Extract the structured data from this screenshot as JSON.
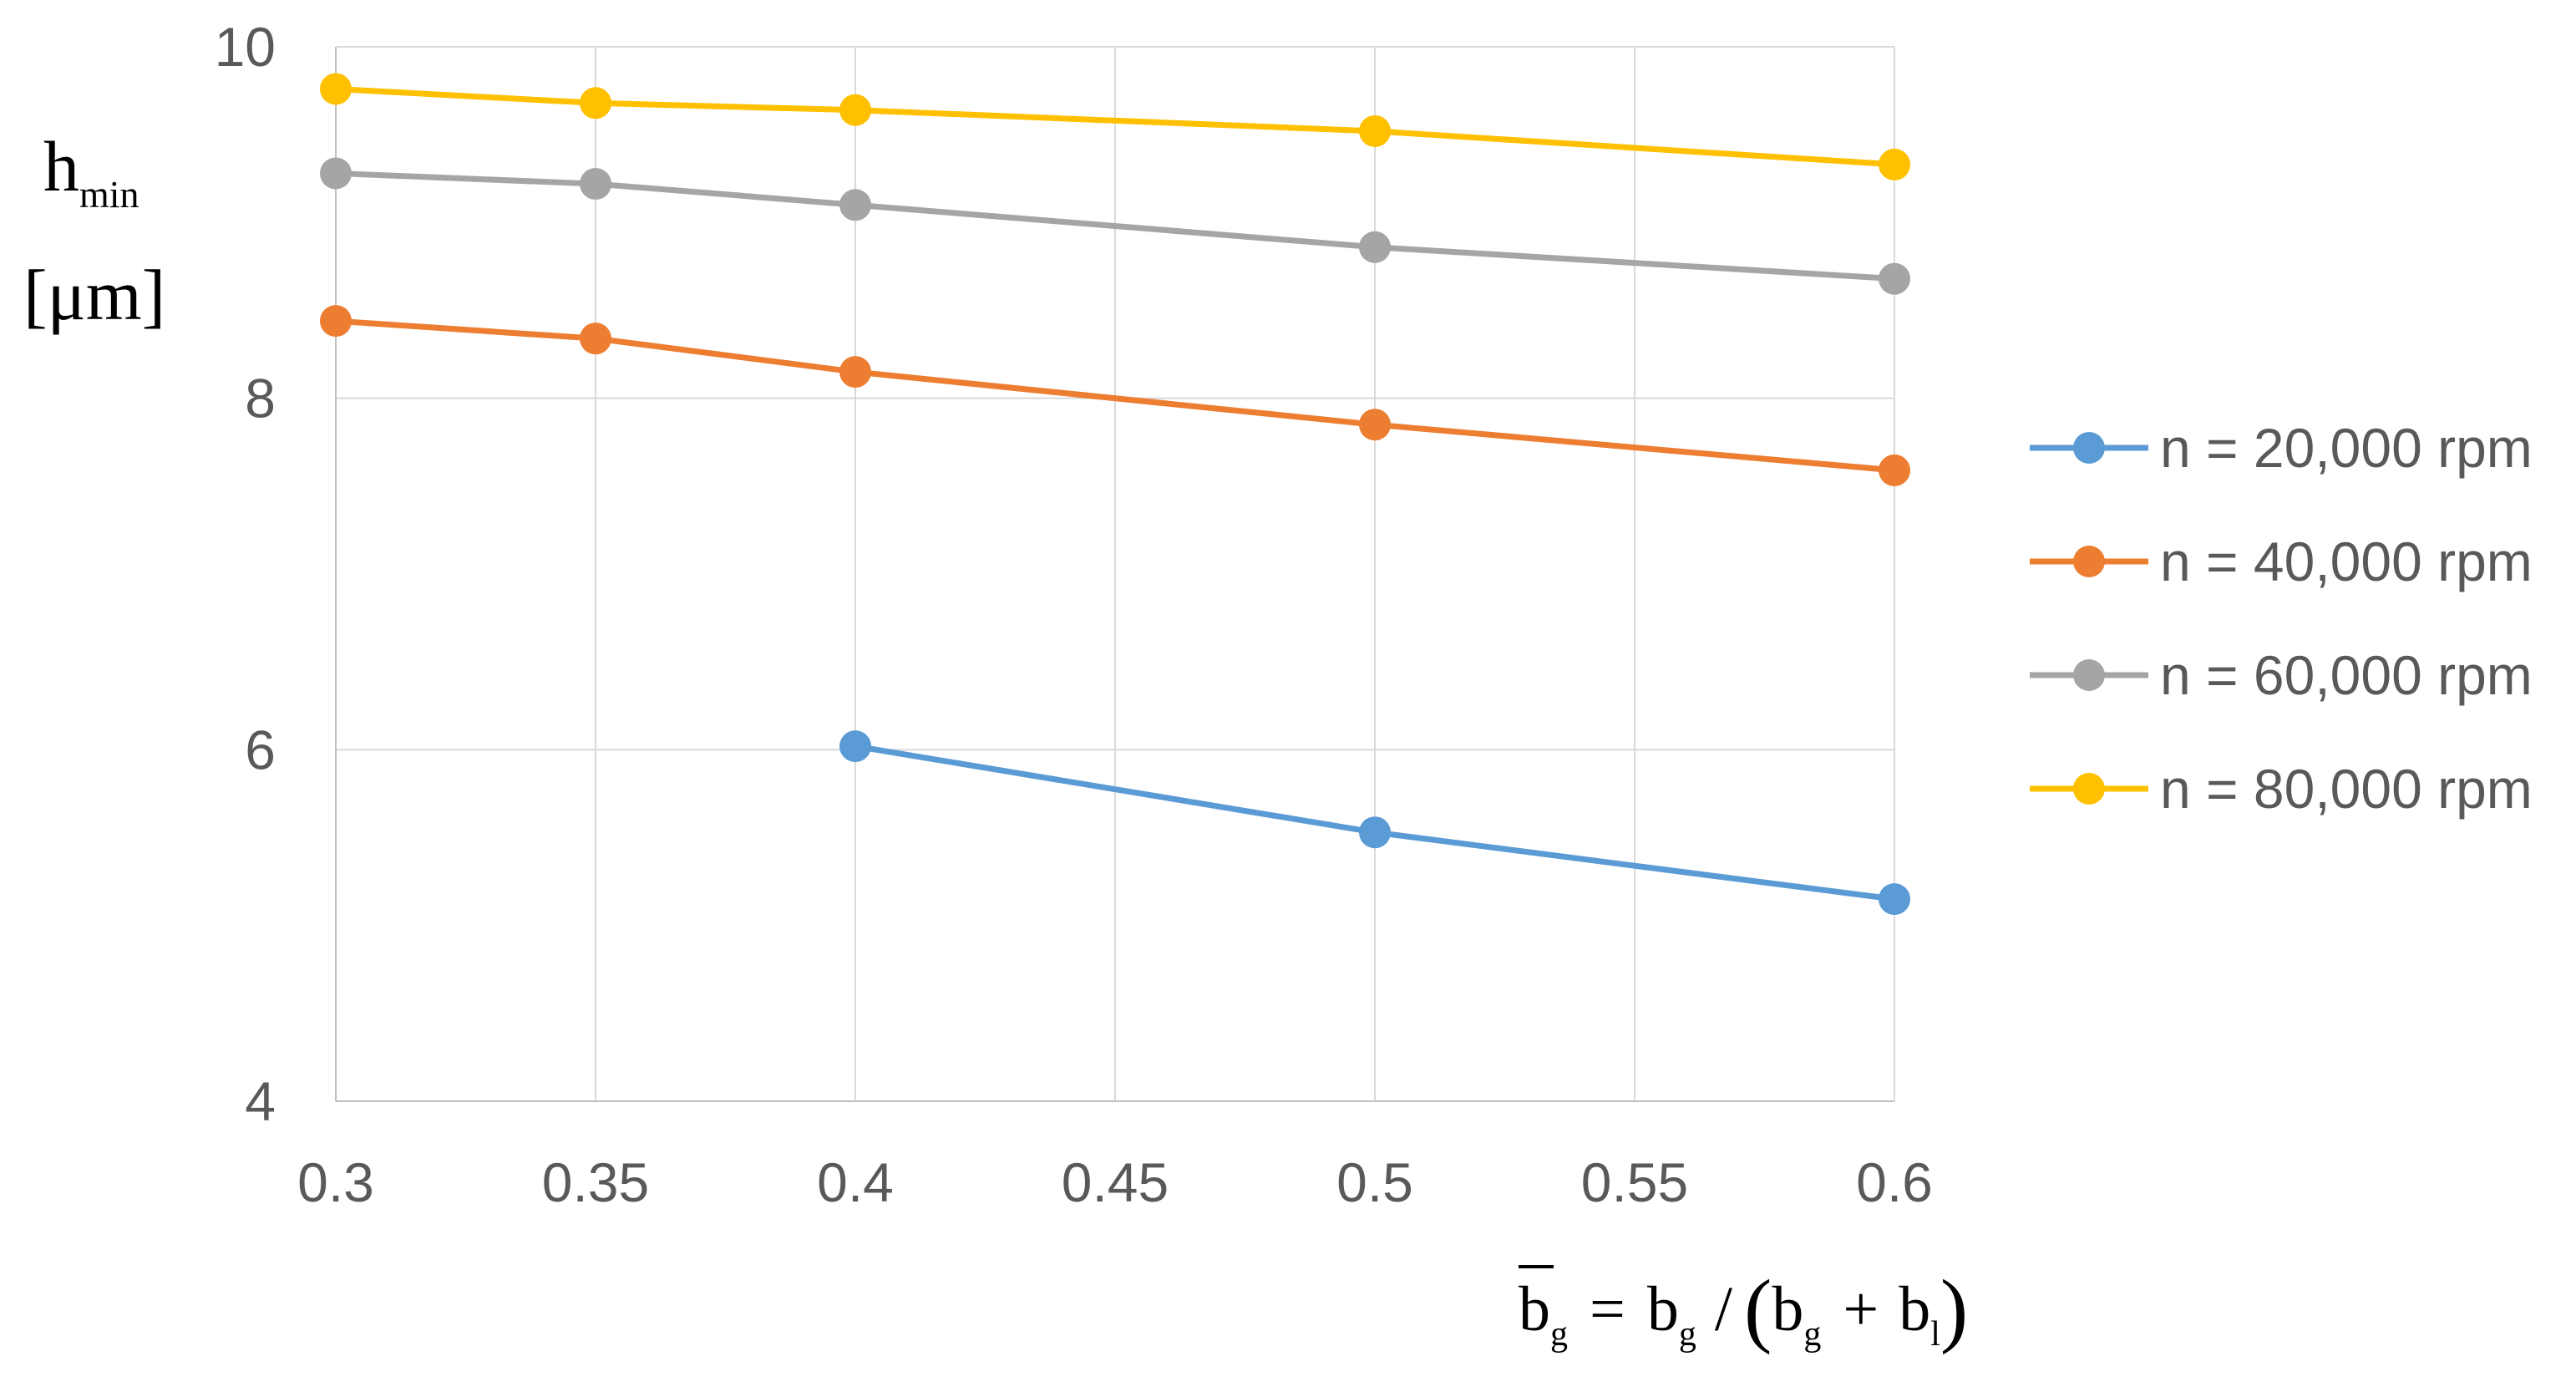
{
  "chart_data": {
    "type": "line",
    "title": "",
    "ylabel": {
      "symbol": "h",
      "subscript": "min",
      "unit": "[μm]"
    },
    "xlabel": {
      "symbol": "b",
      "subscript": "g",
      "equals": "=",
      "rhs_symbol": "b",
      "rhs_subscript": "g",
      "slash": "/",
      "open_paren": "(",
      "den1_symbol": "b",
      "den1_subscript": "g",
      "plus": "+",
      "den2_symbol": "b",
      "den2_subscript": "l",
      "close_paren": ")"
    },
    "xlim": [
      0.3,
      0.6
    ],
    "ylim": [
      4,
      10
    ],
    "xticks": [
      0.3,
      0.35,
      0.4,
      0.45,
      0.5,
      0.55,
      0.6
    ],
    "xtick_labels": [
      "0.3",
      "0.35",
      "0.4",
      "0.45",
      "0.5",
      "0.55",
      "0.6"
    ],
    "yticks": [
      4,
      6,
      8,
      10
    ],
    "ytick_labels": [
      "4",
      "6",
      "8",
      "10"
    ],
    "grid": true,
    "legend_position": "right",
    "series": [
      {
        "name": "n = 20,000 rpm",
        "color": "#5b9bd5",
        "x": [
          0.4,
          0.5,
          0.6
        ],
        "y": [
          6.02,
          5.53,
          5.15
        ]
      },
      {
        "name": "n = 40,000 rpm",
        "color": "#ed7d31",
        "x": [
          0.3,
          0.35,
          0.4,
          0.5,
          0.6
        ],
        "y": [
          8.44,
          8.34,
          8.15,
          7.85,
          7.59
        ]
      },
      {
        "name": "n = 60,000 rpm",
        "color": "#a5a5a5",
        "x": [
          0.3,
          0.35,
          0.4,
          0.5,
          0.6
        ],
        "y": [
          9.28,
          9.22,
          9.1,
          8.86,
          8.68
        ]
      },
      {
        "name": "n = 80,000 rpm",
        "color": "#ffc000",
        "x": [
          0.3,
          0.35,
          0.4,
          0.5,
          0.6
        ],
        "y": [
          9.76,
          9.68,
          9.64,
          9.52,
          9.33
        ]
      }
    ]
  }
}
